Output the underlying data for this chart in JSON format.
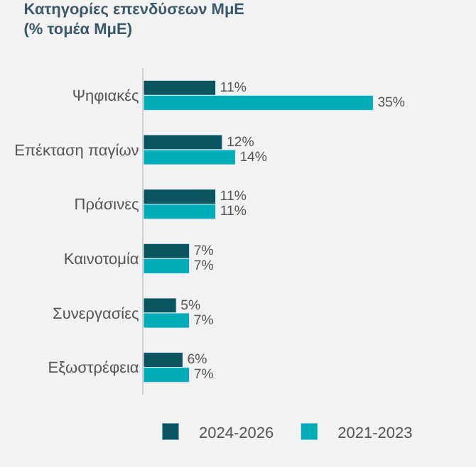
{
  "chart_data": {
    "type": "bar",
    "orientation": "horizontal",
    "title": "Κατηγορίες επενδύσεων ΜμΕ",
    "subtitle": "(% τομέα ΜμΕ)",
    "categories": [
      "Ψηφιακές",
      "Επέκταση παγίων",
      "Πράσινες",
      "Καινοτομία",
      "Συνεργασίες",
      "Εξωστρέφεια"
    ],
    "series": [
      {
        "name": "2024-2026",
        "color": "#0b5560",
        "values": [
          11,
          12,
          11,
          7,
          5,
          6
        ],
        "value_labels": [
          "11%",
          "12%",
          "11%",
          "7%",
          "5%",
          "6%"
        ]
      },
      {
        "name": "2021-2023",
        "color": "#00adb9",
        "values": [
          35,
          14,
          11,
          7,
          7,
          7
        ],
        "value_labels": [
          "35%",
          "14%",
          "11%",
          "7%",
          "7%",
          "7%"
        ]
      }
    ],
    "legend": "bottom"
  }
}
